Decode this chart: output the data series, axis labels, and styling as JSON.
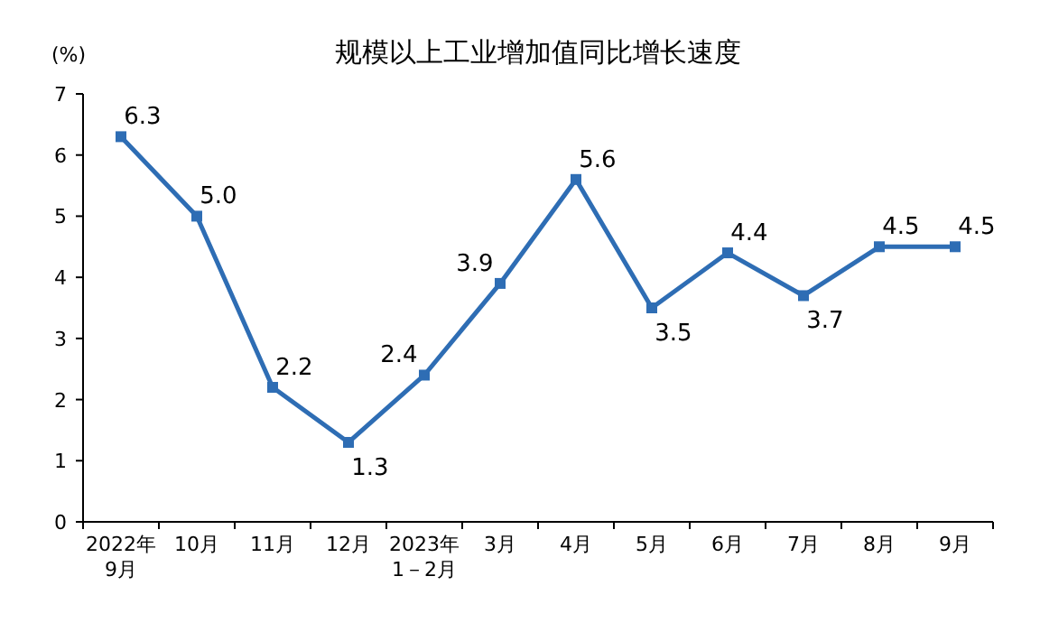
{
  "chart_data": {
    "type": "line",
    "title": "规模以上工业增加值同比增长速度",
    "ylabel": "(%)",
    "categories": [
      "2022年\n9月",
      "10月",
      "11月",
      "12月",
      "2023年\n1－2月",
      "3月",
      "4月",
      "5月",
      "6月",
      "7月",
      "8月",
      "9月"
    ],
    "values": [
      6.3,
      5.0,
      2.2,
      1.3,
      2.4,
      3.9,
      5.6,
      3.5,
      4.4,
      3.7,
      4.5,
      4.5
    ],
    "value_labels": [
      "6.3",
      "5.0",
      "2.2",
      "1.3",
      "2.4",
      "3.9",
      "5.6",
      "3.5",
      "4.4",
      "3.7",
      "4.5",
      "4.5"
    ],
    "color": "#2e6db4",
    "marker": "square",
    "line_style": "solid",
    "grid": false,
    "ylim": [
      0,
      7
    ],
    "yticks": [
      0,
      1,
      2,
      3,
      4,
      5,
      6,
      7
    ]
  }
}
